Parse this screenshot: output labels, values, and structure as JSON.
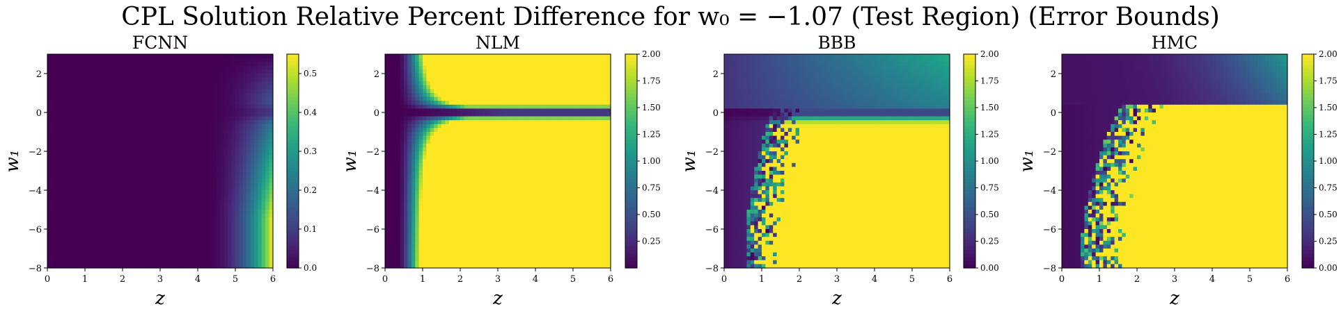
{
  "figure": {
    "title": "CPL Solution Relative Percent Difference for w₀ = −1.07 (Test Region) (Error Bounds)"
  },
  "chart_data": [
    {
      "type": "heatmap",
      "title": "FCNN",
      "xlabel": "z",
      "ylabel": "w₁",
      "xlim": [
        0,
        6
      ],
      "ylim": [
        -8,
        3
      ],
      "xticks": [
        "0",
        "1",
        "2",
        "3",
        "4",
        "5",
        "6"
      ],
      "yticks": [
        "−8",
        "−6",
        "−4",
        "−2",
        "0",
        "2"
      ],
      "colorbar": {
        "min": 0.0,
        "max": 0.55,
        "ticks": [
          "0.0",
          "0.1",
          "0.2",
          "0.3",
          "0.4",
          "0.5"
        ]
      },
      "colormap": "viridis",
      "pattern": "smooth; near 0 over most of the domain, rising to ~0.55 at z=6, w₁=−8; slight dip along w₁≈0"
    },
    {
      "type": "heatmap",
      "title": "NLM",
      "xlabel": "z",
      "ylabel": "w₁",
      "xlim": [
        0,
        6
      ],
      "ylim": [
        -8,
        3
      ],
      "xticks": [
        "0",
        "1",
        "2",
        "3",
        "4",
        "5",
        "6"
      ],
      "yticks": [
        "−8",
        "−6",
        "−4",
        "−2",
        "0",
        "2"
      ],
      "colorbar": {
        "min": 0.0,
        "max": 2.0,
        "ticks": [
          "0.25",
          "0.50",
          "0.75",
          "1.00",
          "1.25",
          "1.50",
          "1.75",
          "2.00"
        ]
      },
      "colormap": "viridis",
      "pattern": "smooth; low for z<0.5 and in a narrow band around w₁≈0; saturated at 2.00 elsewhere"
    },
    {
      "type": "heatmap",
      "title": "BBB",
      "xlabel": "z",
      "ylabel": "w₁",
      "xlim": [
        0,
        6
      ],
      "ylim": [
        -8,
        3
      ],
      "xticks": [
        "0",
        "1",
        "2",
        "3",
        "4",
        "5",
        "6"
      ],
      "yticks": [
        "−8",
        "−6",
        "−4",
        "−2",
        "0",
        "2"
      ],
      "colorbar": {
        "min": 0.0,
        "max": 2.0,
        "ticks": [
          "0.00",
          "0.25",
          "0.50",
          "0.75",
          "1.00",
          "1.25",
          "1.50",
          "1.75",
          "2.00"
        ]
      },
      "colormap": "viridis",
      "pattern": "noisy; low at small z and around w₁≈0, moderate for w₁>0, saturated at 2.00 toward large z and negative w₁ with a noisy boundary"
    },
    {
      "type": "heatmap",
      "title": "HMC",
      "xlabel": "z",
      "ylabel": "w₁",
      "xlim": [
        0,
        6
      ],
      "ylim": [
        -8,
        3
      ],
      "xticks": [
        "0",
        "1",
        "2",
        "3",
        "4",
        "5",
        "6"
      ],
      "yticks": [
        "−8",
        "−6",
        "−4",
        "−2",
        "0",
        "2"
      ],
      "colorbar": {
        "min": 0.0,
        "max": 2.0,
        "ticks": [
          "0.00",
          "0.25",
          "0.50",
          "0.75",
          "1.00",
          "1.25",
          "1.50",
          "1.75",
          "2.00"
        ]
      },
      "colormap": "viridis",
      "pattern": "noisy; low at small z and for w₁ near 0, moderate toward upper-right, saturated at 2.00 toward large z and negative w₁ with a noisy boundary"
    }
  ]
}
